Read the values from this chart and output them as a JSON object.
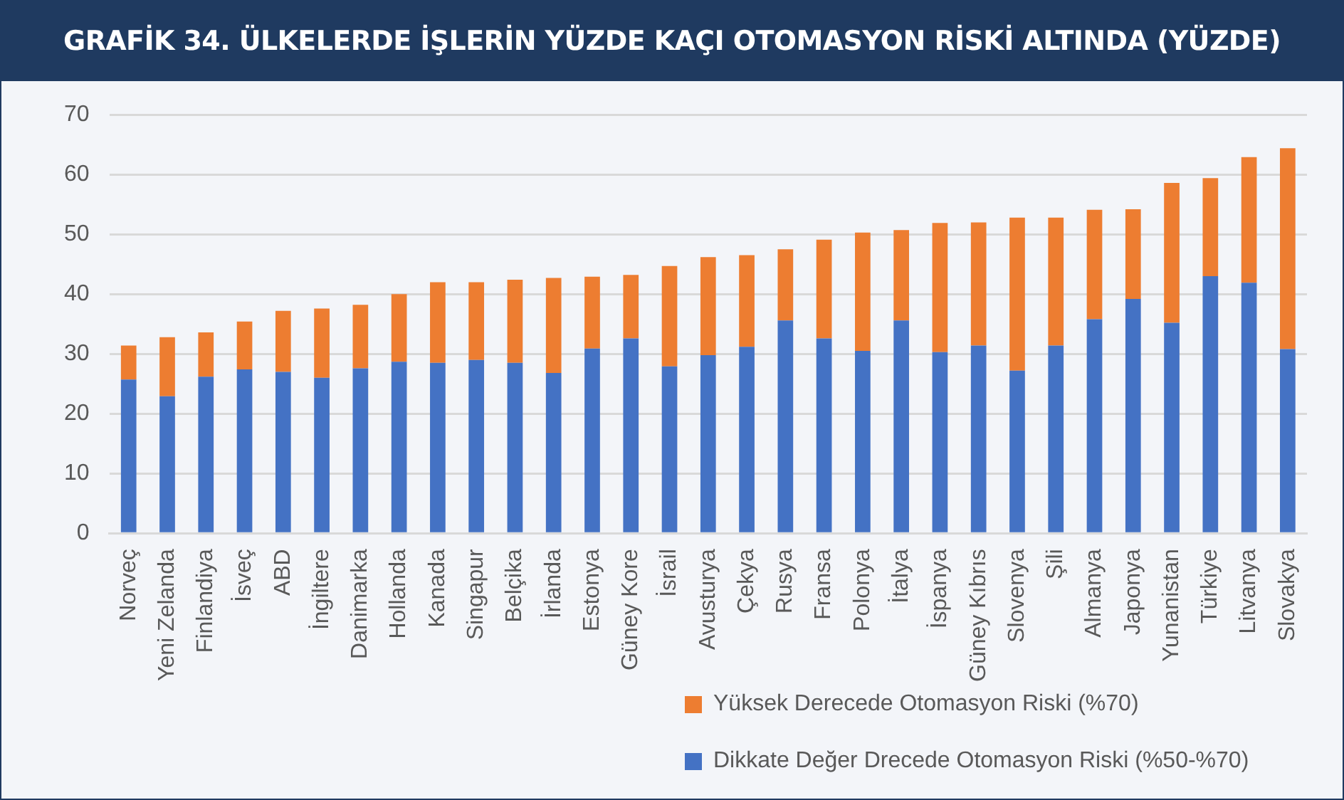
{
  "chart_data": {
    "type": "bar",
    "title": "GRAFİK 34. ÜLKELERDE İŞLERİN YÜZDE KAÇI OTOMASYON RİSKİ ALTINDA (YÜZDE)",
    "stacked": true,
    "legend": "bottom",
    "grid": "y",
    "categories": [
      "Norveç",
      "Yeni Zelanda",
      "Finlandiya",
      "İsveç",
      "ABD",
      "İngiltere",
      "Danimarka",
      "Hollanda",
      "Kanada",
      "Singapur",
      "Belçika",
      "İrlanda",
      "Estonya",
      "Güney Kore",
      "İsrail",
      "Avusturya",
      "Çekya",
      "Rusya",
      "Fransa",
      "Polonya",
      "İtalya",
      "İspanya",
      "Güney Kıbrıs",
      "Slovenya",
      "Şili",
      "Almanya",
      "Japonya",
      "Yunanistan",
      "Türkiye",
      "Litvanya",
      "Slovakya"
    ],
    "series": [
      {
        "name": "Dikkate Değer Drecede Otomasyon Riski (%50-%70)",
        "color": "#4472c4",
        "values": [
          25.7,
          22.9,
          26.2,
          27.4,
          27.0,
          26.0,
          27.6,
          28.7,
          28.5,
          29.0,
          28.5,
          26.8,
          30.9,
          32.6,
          27.9,
          29.8,
          31.2,
          35.6,
          32.6,
          30.5,
          35.6,
          30.3,
          31.4,
          27.2,
          31.4,
          35.8,
          39.2,
          35.2,
          43.0,
          41.9,
          30.8
        ]
      },
      {
        "name": "Yüksek Derecede Otomasyon Riski (%70)",
        "color": "#ed7d31",
        "values": [
          5.7,
          9.9,
          7.4,
          8.0,
          10.2,
          11.6,
          10.6,
          11.3,
          13.5,
          13.0,
          13.9,
          15.9,
          12.0,
          10.6,
          16.8,
          16.4,
          15.3,
          11.9,
          16.5,
          19.8,
          15.1,
          21.6,
          20.6,
          25.6,
          21.4,
          18.3,
          15.0,
          23.4,
          16.4,
          21.0,
          33.6
        ]
      }
    ],
    "ylim": [
      0,
      70
    ],
    "yticks": [
      0,
      10,
      20,
      30,
      40,
      50,
      60,
      70
    ]
  }
}
